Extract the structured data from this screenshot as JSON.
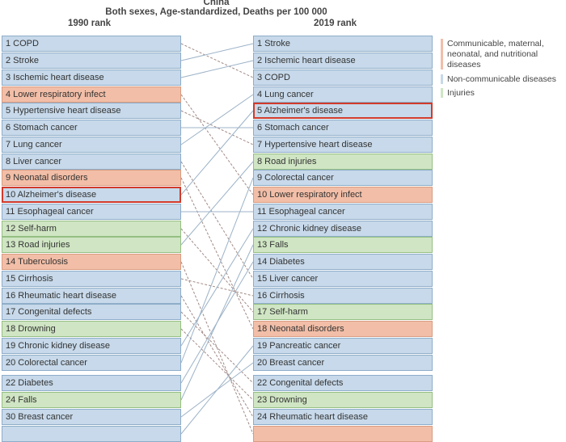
{
  "header": {
    "country": "China",
    "subtitle": "Both sexes, Age-standardized, Deaths per 100 000",
    "left_col": "1990 rank",
    "right_col": "2019 rank"
  },
  "colors": {
    "communicable": "#f2bea7",
    "noncommunicable": "#c7d9ea",
    "injuries": "#cfe5c3",
    "highlight": "#d13a2b",
    "line_rise": "#9db3c8",
    "line_fall": "#a08a86"
  },
  "legend": [
    {
      "label": "Communicable, maternal, neonatal, and nutritional diseases",
      "category": "communicable"
    },
    {
      "label": "Non-communicable diseases",
      "category": "noncommunicable"
    },
    {
      "label": "Injuries",
      "category": "injuries"
    }
  ],
  "left": [
    {
      "rank": 1,
      "label": "1 COPD",
      "category": "noncommunicable"
    },
    {
      "rank": 2,
      "label": "2 Stroke",
      "category": "noncommunicable"
    },
    {
      "rank": 3,
      "label": "3 Ischemic heart disease",
      "category": "noncommunicable"
    },
    {
      "rank": 4,
      "label": "4 Lower respiratory infect",
      "category": "communicable"
    },
    {
      "rank": 5,
      "label": "5 Hypertensive heart disease",
      "category": "noncommunicable"
    },
    {
      "rank": 6,
      "label": "6 Stomach cancer",
      "category": "noncommunicable"
    },
    {
      "rank": 7,
      "label": "7 Lung cancer",
      "category": "noncommunicable"
    },
    {
      "rank": 8,
      "label": "8 Liver cancer",
      "category": "noncommunicable"
    },
    {
      "rank": 9,
      "label": "9 Neonatal disorders",
      "category": "communicable"
    },
    {
      "rank": 10,
      "label": "10 Alzheimer's disease",
      "category": "noncommunicable",
      "highlight": true
    },
    {
      "rank": 11,
      "label": "11 Esophageal cancer",
      "category": "noncommunicable"
    },
    {
      "rank": 12,
      "label": "12 Self-harm",
      "category": "injuries"
    },
    {
      "rank": 13,
      "label": "13 Road injuries",
      "category": "injuries"
    },
    {
      "rank": 14,
      "label": "14 Tuberculosis",
      "category": "communicable"
    },
    {
      "rank": 15,
      "label": "15 Cirrhosis",
      "category": "noncommunicable"
    },
    {
      "rank": 16,
      "label": "16 Rheumatic heart disease",
      "category": "noncommunicable"
    },
    {
      "rank": 17,
      "label": "17 Congenital defects",
      "category": "noncommunicable"
    },
    {
      "rank": 18,
      "label": "18 Drowning",
      "category": "injuries"
    },
    {
      "rank": 19,
      "label": "19 Chronic kidney disease",
      "category": "noncommunicable"
    },
    {
      "rank": 20,
      "label": "20 Colorectal cancer",
      "category": "noncommunicable"
    },
    {
      "rank": 22,
      "label": "22 Diabetes",
      "category": "noncommunicable"
    },
    {
      "rank": 24,
      "label": "24 Falls",
      "category": "injuries"
    },
    {
      "rank": 30,
      "label": "30 Breast cancer",
      "category": "noncommunicable"
    },
    {
      "rank": null,
      "label": "",
      "category": "noncommunicable"
    }
  ],
  "right": [
    {
      "rank": 1,
      "label": "1 Stroke",
      "category": "noncommunicable"
    },
    {
      "rank": 2,
      "label": "2 Ischemic heart disease",
      "category": "noncommunicable"
    },
    {
      "rank": 3,
      "label": "3 COPD",
      "category": "noncommunicable"
    },
    {
      "rank": 4,
      "label": "4 Lung cancer",
      "category": "noncommunicable"
    },
    {
      "rank": 5,
      "label": "5 Alzheimer's disease",
      "category": "noncommunicable",
      "highlight": true
    },
    {
      "rank": 6,
      "label": "6 Stomach cancer",
      "category": "noncommunicable"
    },
    {
      "rank": 7,
      "label": "7 Hypertensive heart disease",
      "category": "noncommunicable"
    },
    {
      "rank": 8,
      "label": "8 Road injuries",
      "category": "injuries"
    },
    {
      "rank": 9,
      "label": "9 Colorectal cancer",
      "category": "noncommunicable"
    },
    {
      "rank": 10,
      "label": "10 Lower respiratory infect",
      "category": "communicable"
    },
    {
      "rank": 11,
      "label": "11 Esophageal cancer",
      "category": "noncommunicable"
    },
    {
      "rank": 12,
      "label": "12 Chronic kidney disease",
      "category": "noncommunicable"
    },
    {
      "rank": 13,
      "label": "13 Falls",
      "category": "injuries"
    },
    {
      "rank": 14,
      "label": "14 Diabetes",
      "category": "noncommunicable"
    },
    {
      "rank": 15,
      "label": "15 Liver cancer",
      "category": "noncommunicable"
    },
    {
      "rank": 16,
      "label": "16 Cirrhosis",
      "category": "noncommunicable"
    },
    {
      "rank": 17,
      "label": "17 Self-harm",
      "category": "injuries"
    },
    {
      "rank": 18,
      "label": "18 Neonatal disorders",
      "category": "communicable"
    },
    {
      "rank": 19,
      "label": "19 Pancreatic cancer",
      "category": "noncommunicable"
    },
    {
      "rank": 20,
      "label": "20 Breast cancer",
      "category": "noncommunicable"
    },
    {
      "rank": 22,
      "label": "22 Congenital defects",
      "category": "noncommunicable"
    },
    {
      "rank": 23,
      "label": "23 Drowning",
      "category": "injuries"
    },
    {
      "rank": 24,
      "label": "24 Rheumatic heart disease",
      "category": "noncommunicable"
    },
    {
      "rank": null,
      "label": "",
      "category": "communicable"
    }
  ],
  "links": [
    {
      "from": 0,
      "to": 2
    },
    {
      "from": 1,
      "to": 0
    },
    {
      "from": 2,
      "to": 1
    },
    {
      "from": 3,
      "to": 9
    },
    {
      "from": 4,
      "to": 6
    },
    {
      "from": 5,
      "to": 5
    },
    {
      "from": 6,
      "to": 3
    },
    {
      "from": 7,
      "to": 14
    },
    {
      "from": 8,
      "to": 17
    },
    {
      "from": 9,
      "to": 4
    },
    {
      "from": 10,
      "to": 10
    },
    {
      "from": 11,
      "to": 16
    },
    {
      "from": 12,
      "to": 7
    },
    {
      "from": 13,
      "to": 23
    },
    {
      "from": 14,
      "to": 15
    },
    {
      "from": 15,
      "to": 22
    },
    {
      "from": 16,
      "to": 20
    },
    {
      "from": 17,
      "to": 21
    },
    {
      "from": 18,
      "to": 11
    },
    {
      "from": 19,
      "to": 8
    },
    {
      "from": 20,
      "to": 13
    },
    {
      "from": 21,
      "to": 12
    },
    {
      "from": 22,
      "to": 19
    },
    {
      "from": 23,
      "to": 18
    }
  ]
}
